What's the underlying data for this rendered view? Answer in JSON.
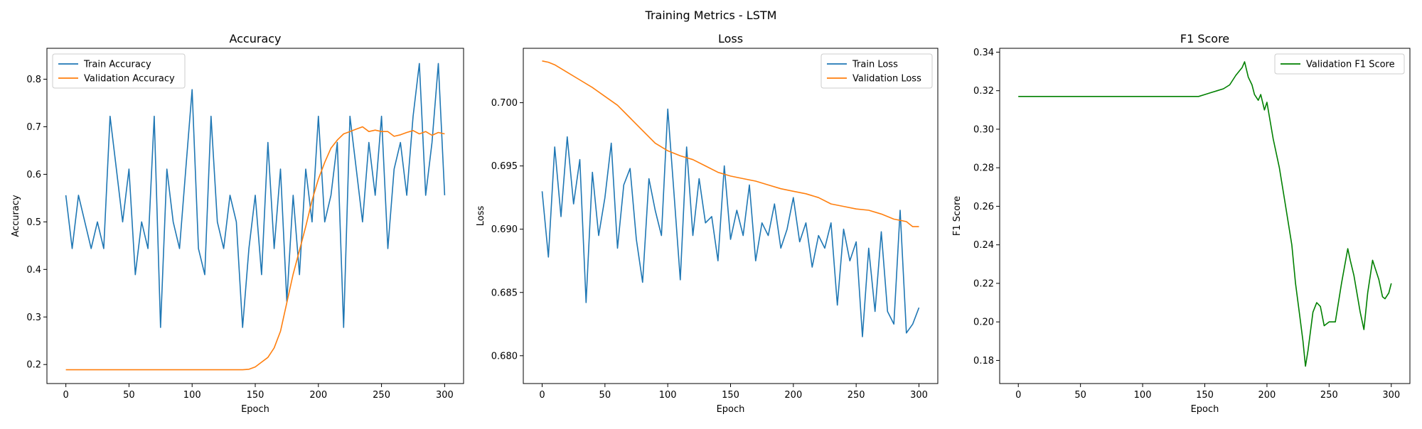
{
  "figure": {
    "suptitle": "Training Metrics - LSTM"
  },
  "colors": {
    "train": "#1f77b4",
    "validation": "#ff7f0e",
    "f1": "#008000",
    "axis": "#000000"
  },
  "chart_data": [
    {
      "type": "line",
      "title": "Accuracy",
      "xlabel": "Epoch",
      "ylabel": "Accuracy",
      "xlim": [
        -15,
        315
      ],
      "ylim": [
        0.16,
        0.865
      ],
      "xticks": [
        0,
        50,
        100,
        150,
        200,
        250,
        300
      ],
      "yticks": [
        0.2,
        0.3,
        0.4,
        0.5,
        0.6,
        0.7,
        0.8
      ],
      "legend_loc": "upper left",
      "series": [
        {
          "name": "Train Accuracy",
          "color": "#1f77b4",
          "x": [
            0,
            5,
            10,
            15,
            20,
            25,
            30,
            35,
            40,
            45,
            50,
            55,
            60,
            65,
            70,
            75,
            80,
            85,
            90,
            95,
            100,
            105,
            110,
            115,
            120,
            125,
            130,
            135,
            140,
            145,
            150,
            155,
            160,
            165,
            170,
            175,
            180,
            185,
            190,
            195,
            200,
            205,
            210,
            215,
            220,
            225,
            230,
            235,
            240,
            245,
            250,
            255,
            260,
            265,
            270,
            275,
            280,
            285,
            290,
            295,
            300
          ],
          "values": [
            0.556,
            0.444,
            0.556,
            0.5,
            0.444,
            0.5,
            0.444,
            0.722,
            0.611,
            0.5,
            0.611,
            0.389,
            0.5,
            0.444,
            0.722,
            0.278,
            0.611,
            0.5,
            0.444,
            0.611,
            0.778,
            0.444,
            0.389,
            0.722,
            0.5,
            0.444,
            0.556,
            0.5,
            0.278,
            0.444,
            0.556,
            0.389,
            0.667,
            0.444,
            0.611,
            0.333,
            0.556,
            0.389,
            0.611,
            0.5,
            0.722,
            0.5,
            0.556,
            0.667,
            0.278,
            0.722,
            0.611,
            0.5,
            0.667,
            0.556,
            0.722,
            0.444,
            0.611,
            0.667,
            0.556,
            0.722,
            0.833,
            0.556,
            0.667,
            0.833,
            0.556
          ]
        },
        {
          "name": "Validation Accuracy",
          "color": "#ff7f0e",
          "x": [
            0,
            20,
            40,
            60,
            80,
            100,
            120,
            140,
            145,
            150,
            155,
            160,
            165,
            170,
            175,
            180,
            185,
            190,
            195,
            200,
            205,
            210,
            215,
            220,
            225,
            230,
            235,
            240,
            245,
            250,
            255,
            260,
            265,
            270,
            275,
            280,
            285,
            290,
            295,
            300
          ],
          "values": [
            0.189,
            0.189,
            0.189,
            0.189,
            0.189,
            0.189,
            0.189,
            0.189,
            0.19,
            0.195,
            0.205,
            0.215,
            0.235,
            0.27,
            0.33,
            0.39,
            0.44,
            0.49,
            0.545,
            0.59,
            0.625,
            0.655,
            0.672,
            0.685,
            0.69,
            0.695,
            0.7,
            0.69,
            0.693,
            0.69,
            0.69,
            0.68,
            0.683,
            0.688,
            0.692,
            0.685,
            0.69,
            0.682,
            0.688,
            0.685
          ]
        }
      ]
    },
    {
      "type": "line",
      "title": "Loss",
      "xlabel": "Epoch",
      "ylabel": "Loss",
      "xlim": [
        -15,
        315
      ],
      "ylim": [
        0.6778,
        0.7043
      ],
      "xticks": [
        0,
        50,
        100,
        150,
        200,
        250,
        300
      ],
      "yticks": [
        0.68,
        0.685,
        0.69,
        0.695,
        0.7
      ],
      "legend_loc": "upper right",
      "series": [
        {
          "name": "Train Loss",
          "color": "#1f77b4",
          "x": [
            0,
            5,
            10,
            15,
            20,
            25,
            30,
            35,
            40,
            45,
            50,
            55,
            60,
            65,
            70,
            75,
            80,
            85,
            90,
            95,
            100,
            105,
            110,
            115,
            120,
            125,
            130,
            135,
            140,
            145,
            150,
            155,
            160,
            165,
            170,
            175,
            180,
            185,
            190,
            195,
            200,
            205,
            210,
            215,
            220,
            225,
            230,
            235,
            240,
            245,
            250,
            255,
            260,
            265,
            270,
            275,
            280,
            285,
            290,
            295,
            300
          ],
          "values": [
            0.693,
            0.6878,
            0.6965,
            0.691,
            0.6973,
            0.692,
            0.6955,
            0.6842,
            0.6945,
            0.6895,
            0.6925,
            0.6968,
            0.6885,
            0.6935,
            0.6948,
            0.6892,
            0.6858,
            0.694,
            0.6915,
            0.6895,
            0.6995,
            0.6928,
            0.686,
            0.6965,
            0.6895,
            0.694,
            0.6905,
            0.691,
            0.6875,
            0.695,
            0.6892,
            0.6915,
            0.6895,
            0.6935,
            0.6875,
            0.6905,
            0.6895,
            0.692,
            0.6885,
            0.69,
            0.6925,
            0.689,
            0.6905,
            0.687,
            0.6895,
            0.6885,
            0.6905,
            0.684,
            0.69,
            0.6875,
            0.689,
            0.6815,
            0.6885,
            0.6835,
            0.6898,
            0.6835,
            0.6825,
            0.6915,
            0.6818,
            0.6825,
            0.6838
          ]
        },
        {
          "name": "Validation Loss",
          "color": "#ff7f0e",
          "x": [
            0,
            5,
            10,
            20,
            30,
            40,
            50,
            60,
            70,
            80,
            90,
            100,
            110,
            120,
            130,
            140,
            150,
            160,
            170,
            180,
            190,
            200,
            210,
            220,
            230,
            240,
            250,
            260,
            270,
            280,
            290,
            295,
            300
          ],
          "values": [
            0.7033,
            0.7032,
            0.703,
            0.7024,
            0.7018,
            0.7012,
            0.7005,
            0.6998,
            0.6988,
            0.6978,
            0.6968,
            0.6962,
            0.6958,
            0.6955,
            0.695,
            0.6945,
            0.6942,
            0.694,
            0.6938,
            0.6935,
            0.6932,
            0.693,
            0.6928,
            0.6925,
            0.692,
            0.6918,
            0.6916,
            0.6915,
            0.6912,
            0.6908,
            0.6906,
            0.6902,
            0.6902
          ]
        }
      ]
    },
    {
      "type": "line",
      "title": "F1 Score",
      "xlabel": "Epoch",
      "ylabel": "F1 Score",
      "xlim": [
        -15,
        315
      ],
      "ylim": [
        0.168,
        0.342
      ],
      "xticks": [
        0,
        50,
        100,
        150,
        200,
        250,
        300
      ],
      "yticks": [
        0.18,
        0.2,
        0.22,
        0.24,
        0.26,
        0.28,
        0.3,
        0.32,
        0.34
      ],
      "legend_loc": "upper right",
      "series": [
        {
          "name": "Validation F1 Score",
          "color": "#008000",
          "x": [
            0,
            25,
            50,
            75,
            100,
            125,
            145,
            150,
            155,
            160,
            165,
            170,
            175,
            180,
            182,
            185,
            188,
            190,
            193,
            195,
            198,
            200,
            205,
            210,
            215,
            220,
            223,
            226,
            229,
            231,
            233,
            235,
            237,
            240,
            243,
            246,
            250,
            255,
            260,
            265,
            267,
            270,
            275,
            278,
            281,
            285,
            287,
            290,
            293,
            295,
            298,
            300
          ],
          "values": [
            0.317,
            0.317,
            0.317,
            0.317,
            0.317,
            0.317,
            0.317,
            0.318,
            0.319,
            0.32,
            0.321,
            0.323,
            0.328,
            0.332,
            0.335,
            0.327,
            0.323,
            0.318,
            0.315,
            0.318,
            0.31,
            0.314,
            0.295,
            0.28,
            0.26,
            0.24,
            0.22,
            0.205,
            0.19,
            0.177,
            0.185,
            0.195,
            0.205,
            0.21,
            0.208,
            0.198,
            0.2,
            0.2,
            0.22,
            0.238,
            0.232,
            0.224,
            0.205,
            0.196,
            0.215,
            0.232,
            0.228,
            0.222,
            0.213,
            0.212,
            0.215,
            0.22
          ]
        }
      ]
    }
  ]
}
